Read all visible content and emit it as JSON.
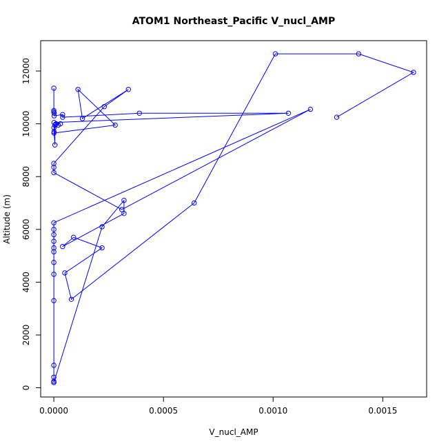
{
  "chart_data": {
    "type": "line",
    "title": "ATOM1 Northeast_Pacific V_nucl_AMP",
    "xlabel": "V_nucl_AMP",
    "ylabel": "Altitude (m)",
    "xlim": [
      -6e-05,
      0.0017
    ],
    "ylim": [
      -350,
      13150
    ],
    "xticks": [
      0,
      0.0005,
      0.001,
      0.0015
    ],
    "xtick_labels": [
      "0.0000",
      "0.0005",
      "0.0010",
      "0.0015"
    ],
    "yticks": [
      0,
      2000,
      4000,
      6000,
      8000,
      10000,
      12000
    ],
    "ytick_labels": [
      "0",
      "2000",
      "4000",
      "6000",
      "8000",
      "10000",
      "12000"
    ],
    "grid": false,
    "series_color": "#0000ff",
    "marker": "open-circle",
    "points": [
      [
        0.0,
        11350
      ],
      [
        0.0,
        10500
      ],
      [
        0.0,
        10450
      ],
      [
        1.5e-06,
        10400
      ],
      [
        1.5e-06,
        10300
      ],
      [
        4e-05,
        10350
      ],
      [
        4e-05,
        10250
      ],
      [
        0.00039,
        10400
      ],
      [
        0.00107,
        10400
      ],
      [
        1e-06,
        10050
      ],
      [
        1e-06,
        9700
      ],
      [
        5e-06,
        9200
      ],
      [
        5e-06,
        9950
      ],
      [
        3e-05,
        10000
      ],
      [
        1e-05,
        10000
      ],
      [
        2e-05,
        9950
      ],
      [
        5e-07,
        9850
      ],
      [
        5e-07,
        9650
      ],
      [
        0.00028,
        9950
      ],
      [
        0.00011,
        11300
      ],
      [
        0.00013,
        10200
      ],
      [
        0.00034,
        11300
      ],
      [
        0.00023,
        10650
      ],
      [
        0.0,
        8500
      ],
      [
        0.0,
        8350
      ],
      [
        0.0,
        8150
      ],
      [
        0.00031,
        6750
      ],
      [
        0.00117,
        10550
      ],
      [
        0.0,
        6250
      ],
      [
        0.0,
        6000
      ],
      [
        0.0,
        5800
      ],
      [
        0.0,
        5550
      ],
      [
        0.0,
        5300
      ],
      [
        0.0,
        5150
      ],
      [
        0.0,
        4750
      ],
      [
        0.0,
        4300
      ],
      [
        0.0,
        3300
      ],
      [
        0.0,
        850
      ],
      [
        0.0,
        400
      ],
      [
        0.0,
        250
      ],
      [
        0.0,
        200
      ],
      [
        0.0,
        200
      ],
      [
        0.00022,
        6100
      ],
      [
        0.00032,
        7100
      ],
      [
        0.00032,
        6600
      ],
      [
        4e-05,
        5350
      ],
      [
        9e-05,
        5700
      ],
      [
        0.00022,
        5300
      ],
      [
        5e-05,
        4350
      ],
      [
        8e-05,
        3350
      ],
      [
        0.00064,
        7000
      ],
      [
        0.00101,
        12650
      ],
      [
        0.00139,
        12650
      ],
      [
        0.00164,
        11950
      ],
      [
        0.00129,
        10250
      ]
    ]
  }
}
